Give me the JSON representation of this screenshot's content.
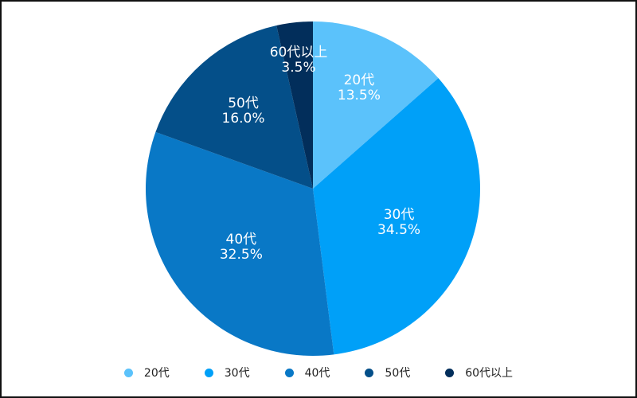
{
  "chart_data": {
    "type": "pie",
    "categories": [
      "20代",
      "30代",
      "40代",
      "50代",
      "60代以上"
    ],
    "values": [
      13.5,
      34.5,
      32.5,
      16.0,
      3.5
    ],
    "value_labels": [
      "13.5%",
      "34.5%",
      "32.5%",
      "16.0%",
      "3.5%"
    ],
    "colors": [
      "#5bc2fb",
      "#00a0f8",
      "#0978c6",
      "#044f89",
      "#022e5b"
    ],
    "start": "12 o'clock",
    "direction": "clockwise",
    "legend_position": "bottom"
  }
}
